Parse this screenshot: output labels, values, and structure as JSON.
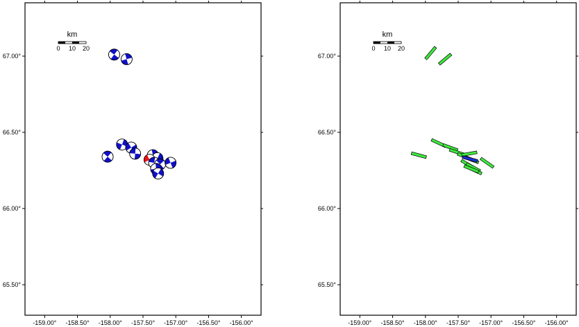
{
  "colors": {
    "frame": "#000000",
    "beachball_fill": "#1010c8",
    "beachball_highlight": "#ee1111",
    "fault_fill": "#3ee83e",
    "fault_highlight": "#1a2fcf"
  },
  "axes": {
    "lon_range": [
      -159.3,
      -155.7
    ],
    "lat_range": [
      65.3,
      67.35
    ],
    "lon_ticks": [
      "-159.00°",
      "-158.50°",
      "-158.00°",
      "-157.50°",
      "-157.00°",
      "-156.50°",
      "-156.00°"
    ],
    "lon_tick_values": [
      -159.0,
      -158.5,
      -158.0,
      -157.5,
      -157.0,
      -156.5,
      -156.0
    ],
    "lat_ticks": [
      "65.50°",
      "66.00°",
      "66.50°",
      "67.00°"
    ],
    "lat_tick_values": [
      65.5,
      66.0,
      66.5,
      67.0
    ]
  },
  "scale_bar": {
    "unit": "km",
    "labels": [
      "0",
      "10",
      "20"
    ]
  },
  "panels": [
    {
      "type": "focal_mechanisms",
      "events": [
        {
          "lon": -157.94,
          "lat": 67.01,
          "highlight": false
        },
        {
          "lon": -157.75,
          "lat": 66.98,
          "highlight": false
        },
        {
          "lon": -157.82,
          "lat": 66.42,
          "highlight": false
        },
        {
          "lon": -157.68,
          "lat": 66.4,
          "highlight": false
        },
        {
          "lon": -157.62,
          "lat": 66.36,
          "highlight": false
        },
        {
          "lon": -158.04,
          "lat": 66.34,
          "highlight": false
        },
        {
          "lon": -157.35,
          "lat": 66.35,
          "highlight": false
        },
        {
          "lon": -157.28,
          "lat": 66.33,
          "highlight": false
        },
        {
          "lon": -157.4,
          "lat": 66.32,
          "highlight": true
        },
        {
          "lon": -157.33,
          "lat": 66.3,
          "highlight": false
        },
        {
          "lon": -157.24,
          "lat": 66.29,
          "highlight": false
        },
        {
          "lon": -157.3,
          "lat": 66.26,
          "highlight": false
        },
        {
          "lon": -157.27,
          "lat": 66.23,
          "highlight": false
        },
        {
          "lon": -157.08,
          "lat": 66.3,
          "highlight": false
        }
      ]
    },
    {
      "type": "fault_planes",
      "segments": [
        {
          "lon": -157.92,
          "lat": 67.02,
          "strike": 40,
          "highlight": false
        },
        {
          "lon": -157.7,
          "lat": 66.98,
          "strike": 50,
          "highlight": false
        },
        {
          "lon": -158.1,
          "lat": 66.35,
          "strike": 105,
          "highlight": false
        },
        {
          "lon": -157.8,
          "lat": 66.43,
          "strike": 115,
          "highlight": false
        },
        {
          "lon": -157.62,
          "lat": 66.4,
          "strike": 110,
          "highlight": false
        },
        {
          "lon": -157.52,
          "lat": 66.37,
          "strike": 108,
          "highlight": false
        },
        {
          "lon": -157.4,
          "lat": 66.34,
          "strike": 112,
          "highlight": false
        },
        {
          "lon": -157.3,
          "lat": 66.32,
          "strike": 110,
          "highlight": false
        },
        {
          "lon": -157.33,
          "lat": 66.36,
          "strike": 80,
          "highlight": false
        },
        {
          "lon": -157.35,
          "lat": 66.29,
          "strike": 120,
          "highlight": false
        },
        {
          "lon": -157.27,
          "lat": 66.27,
          "strike": 118,
          "highlight": false
        },
        {
          "lon": -157.25,
          "lat": 66.25,
          "strike": 115,
          "highlight": false
        },
        {
          "lon": -157.3,
          "lat": 66.26,
          "strike": 112,
          "highlight": false
        },
        {
          "lon": -157.06,
          "lat": 66.3,
          "strike": 125,
          "highlight": false
        },
        {
          "lon": -157.32,
          "lat": 66.325,
          "strike": 105,
          "highlight": true
        }
      ]
    }
  ]
}
